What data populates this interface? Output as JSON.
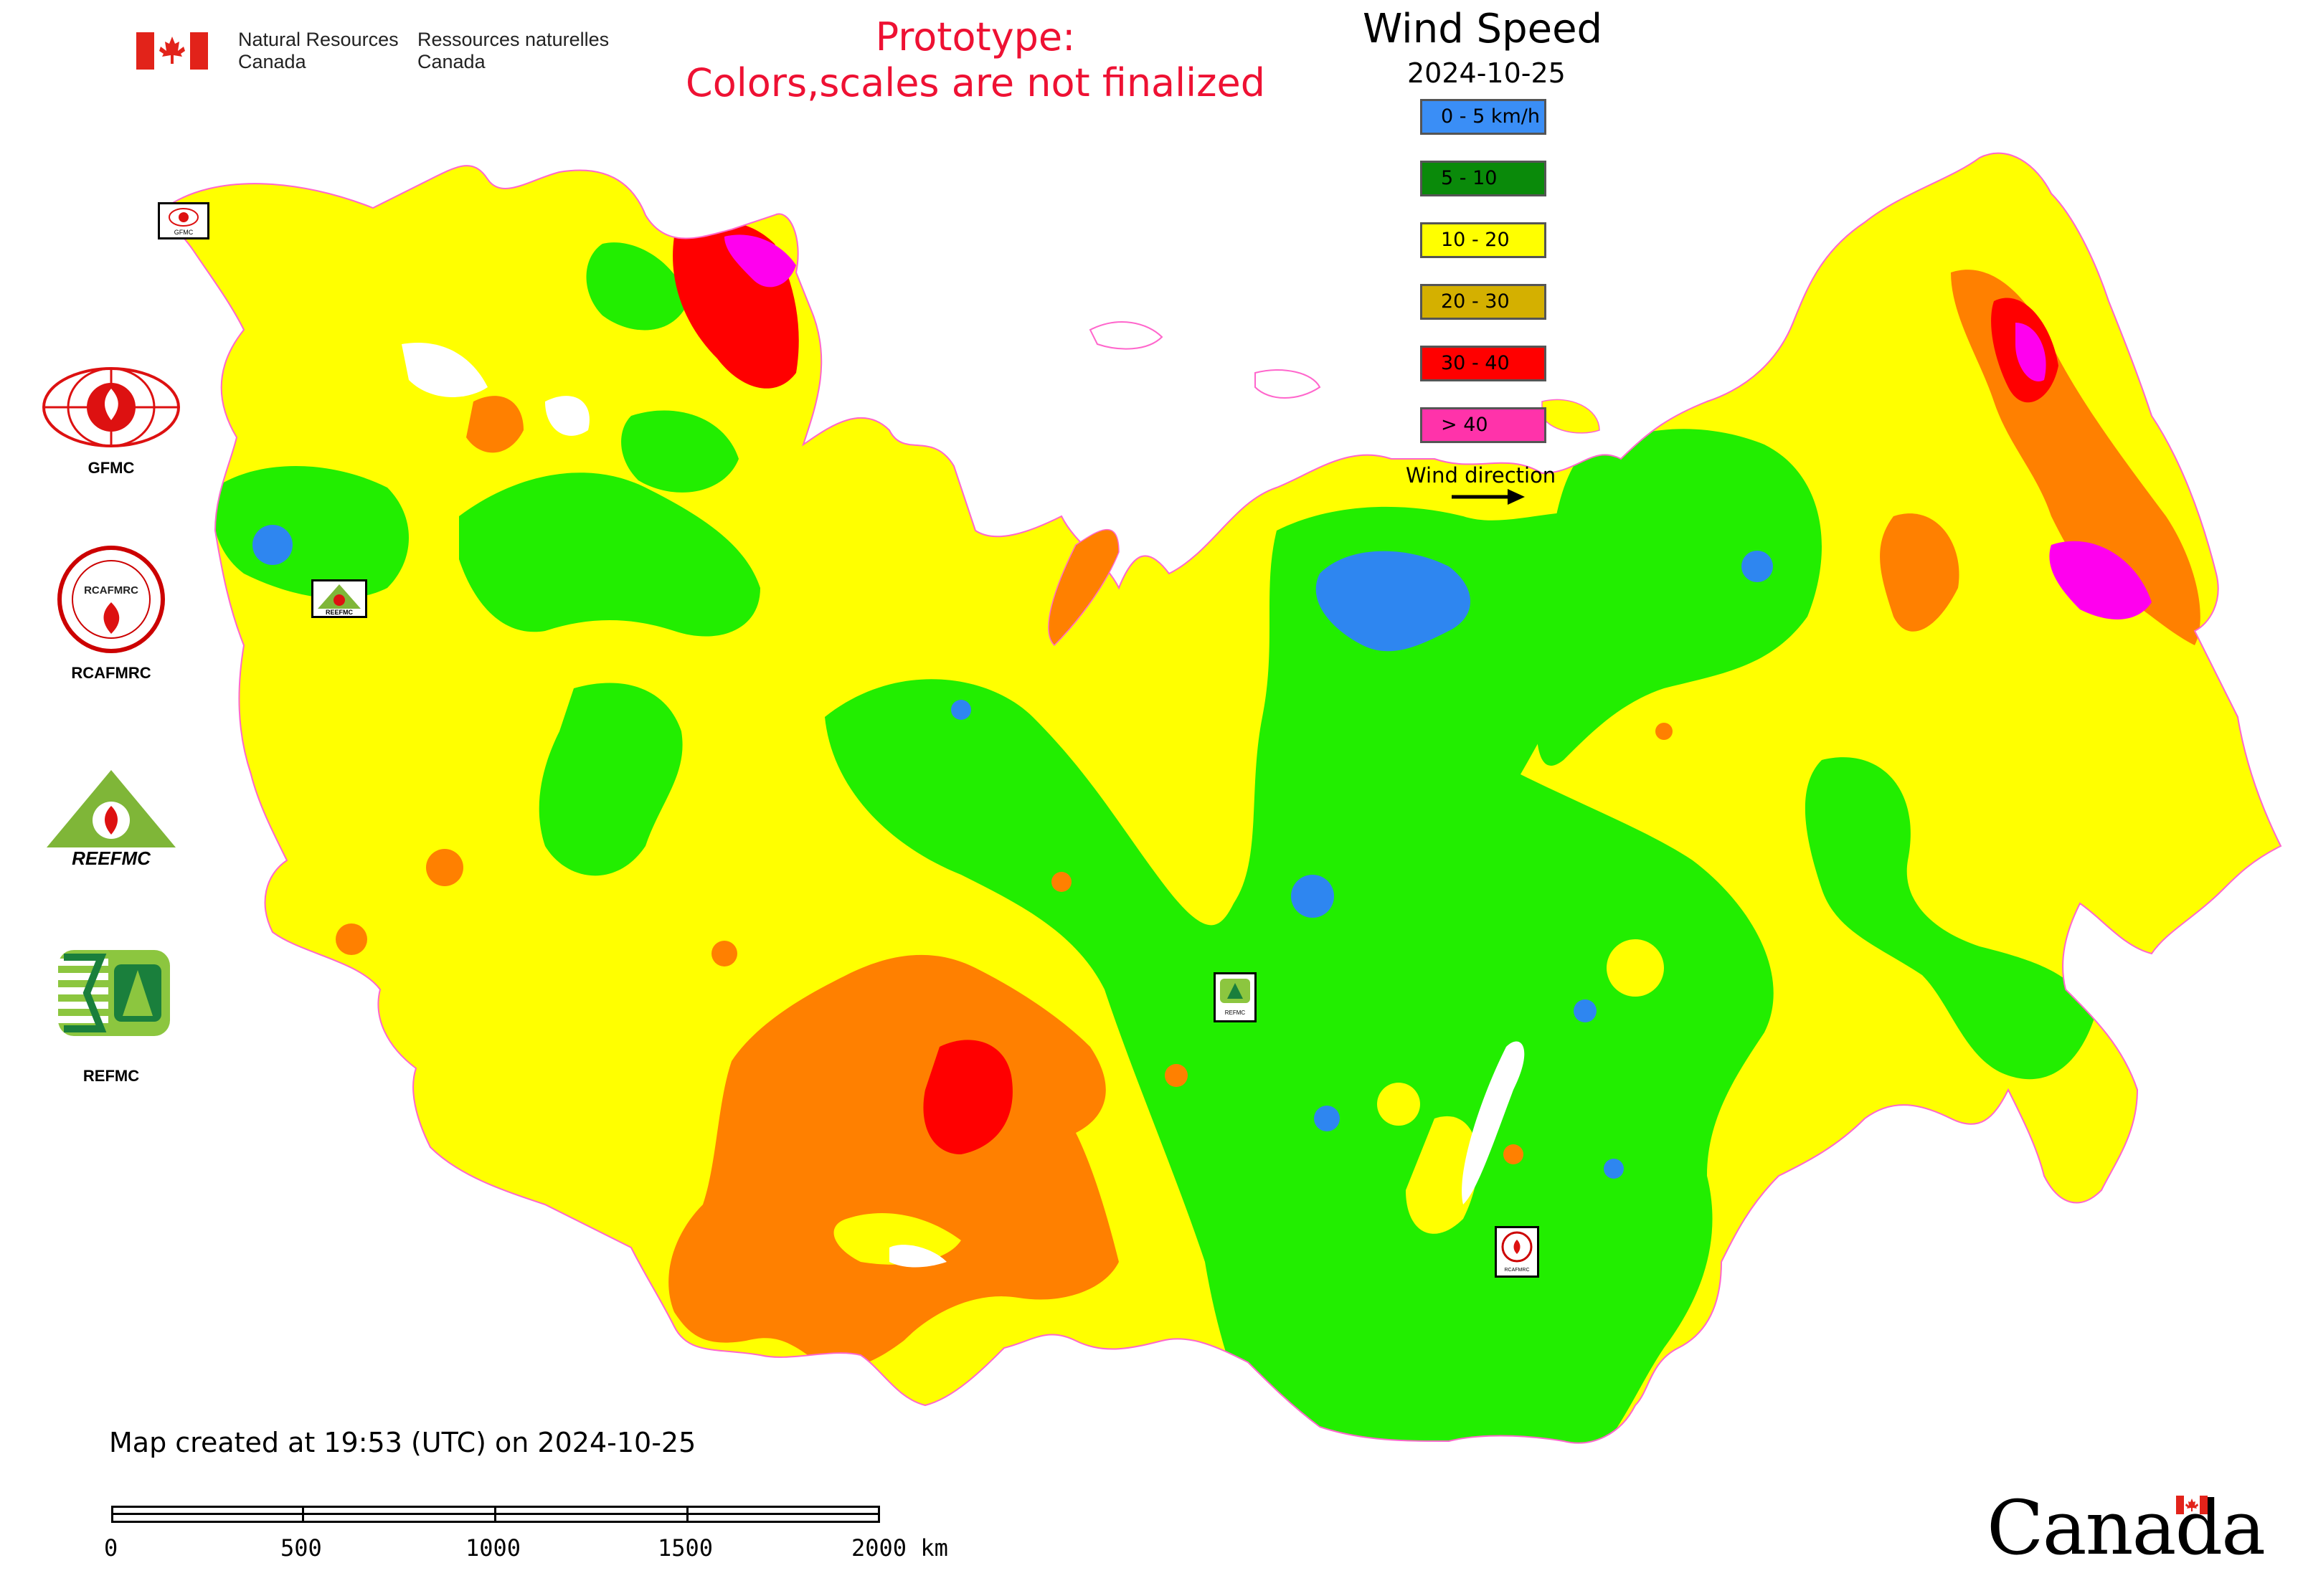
{
  "header": {
    "agency_en_line1": "Natural Resources",
    "agency_en_line2": "Canada",
    "agency_fr_line1": "Ressources naturelles",
    "agency_fr_line2": "Canada",
    "prototype_line1": "Prototype:",
    "prototype_line2": "Colors,scales are not finalized"
  },
  "legend": {
    "title": "Wind Speed",
    "date": "2024-10-25",
    "classes": [
      {
        "label": "0 - 5 km/h",
        "color": "#3a8ef6"
      },
      {
        "label": "5 - 10",
        "color": "#0a8a0a"
      },
      {
        "label": "10 - 20",
        "color": "#ffff00"
      },
      {
        "label": "20 - 30",
        "color": "#d4b000"
      },
      {
        "label": "30 - 40",
        "color": "#ff0000"
      },
      {
        "label": "> 40",
        "color": "#ff33aa"
      }
    ],
    "direction_label": "Wind direction"
  },
  "map_palette": {
    "calm": "#2e86f0",
    "light": "#22ee00",
    "moderate": "#ffff00",
    "fresh": "#ff8000",
    "strong": "#ff0000",
    "gale": "#ff00ee"
  },
  "side_logos": [
    {
      "label": "GFMC",
      "icon": "gfmc-logo"
    },
    {
      "label": "RCAFMRC",
      "icon": "rcafmrc-logo"
    },
    {
      "label": "REEFMC",
      "icon": "reefmc-logo"
    },
    {
      "label": "REFMC",
      "icon": "refmc-logo"
    }
  ],
  "reefmc_wordmark": "REEFMC",
  "map_markers": [
    {
      "name": "GFMC",
      "icon": "gfmc-marker"
    },
    {
      "name": "REEFMC",
      "icon": "reefmc-marker"
    },
    {
      "name": "REFMC",
      "icon": "refmc-marker"
    },
    {
      "name": "RCAFMRC",
      "icon": "rcafmrc-marker"
    }
  ],
  "footer": {
    "created": "Map created at 19:53 (UTC) on 2024-10-25",
    "scale_labels": [
      "0",
      "500",
      "1000",
      "1500",
      "2000 km"
    ],
    "wordmark": "Canada"
  }
}
